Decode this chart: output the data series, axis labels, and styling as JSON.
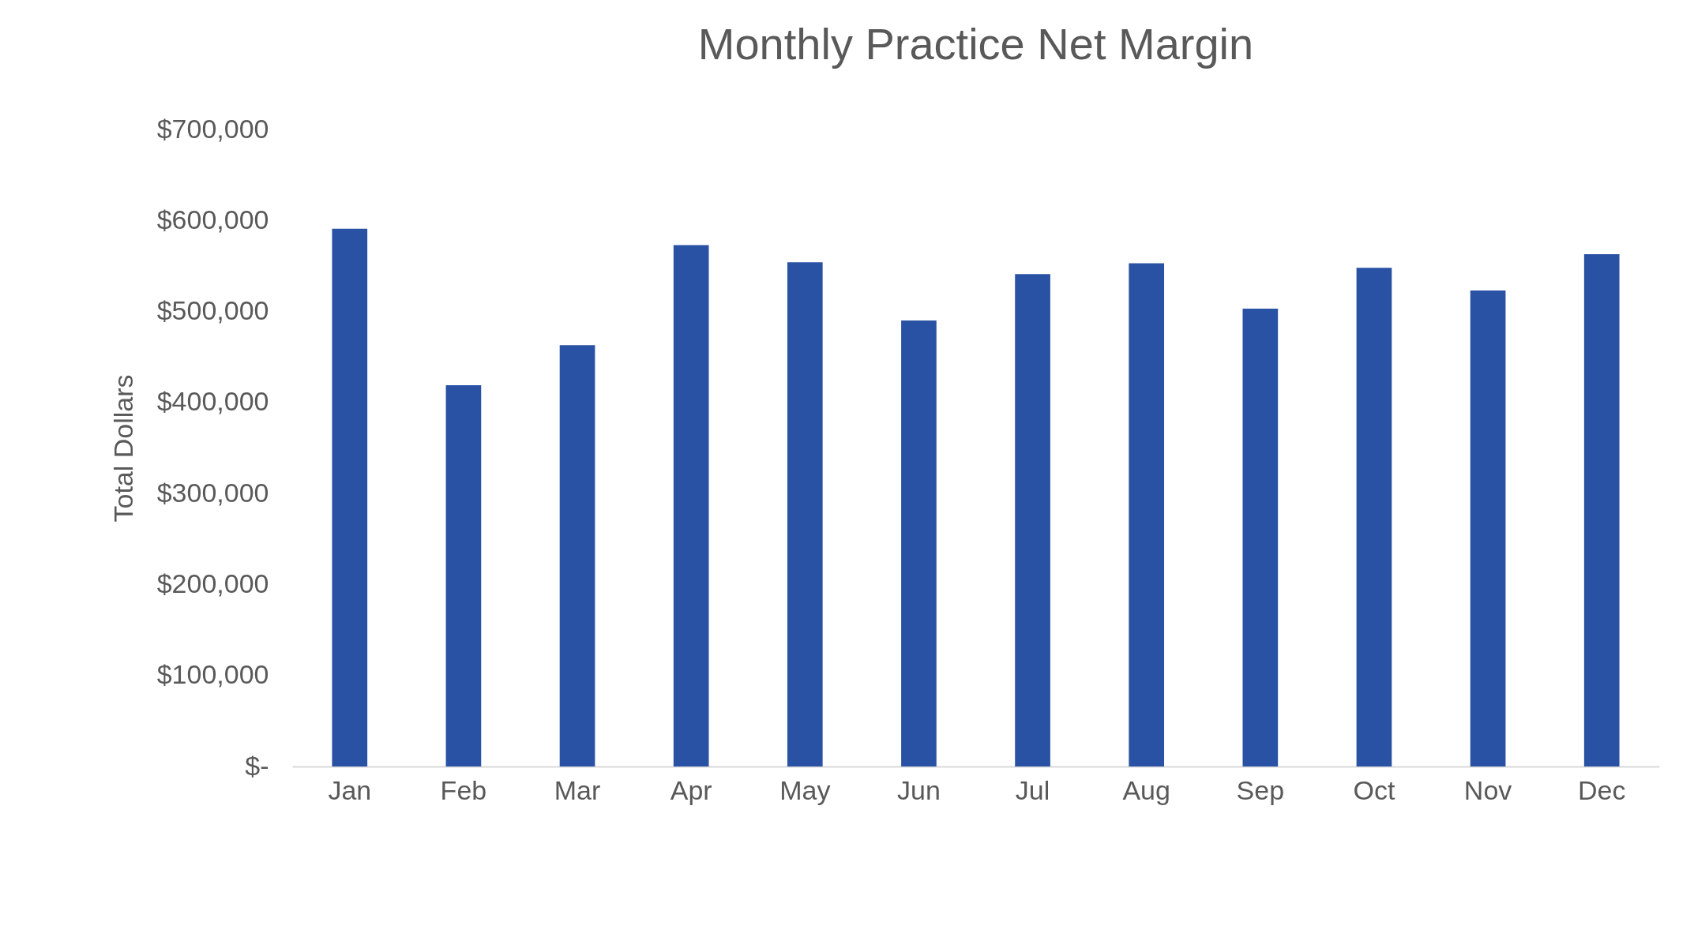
{
  "chart_data": {
    "type": "bar",
    "title": "Monthly Practice Net Margin",
    "ylabel": "Total Dollars",
    "categories": [
      "Jan",
      "Feb",
      "Mar",
      "Apr",
      "May",
      "Jun",
      "Jul",
      "Aug",
      "Sep",
      "Oct",
      "Nov",
      "Dec"
    ],
    "values": [
      591000,
      419000,
      463000,
      573000,
      554000,
      490000,
      541000,
      553000,
      503000,
      548000,
      523000,
      563000
    ],
    "color": "#2a52a4",
    "ylim": [
      0,
      700000
    ],
    "yticks": [
      {
        "value": 0,
        "label": "$-"
      },
      {
        "value": 100000,
        "label": "$100,000"
      },
      {
        "value": 200000,
        "label": "$200,000"
      },
      {
        "value": 300000,
        "label": "$300,000"
      },
      {
        "value": 400000,
        "label": "$400,000"
      },
      {
        "value": 500000,
        "label": "$500,000"
      },
      {
        "value": 600000,
        "label": "$600,000"
      },
      {
        "value": 700000,
        "label": "$700,000"
      }
    ],
    "grid": false
  }
}
